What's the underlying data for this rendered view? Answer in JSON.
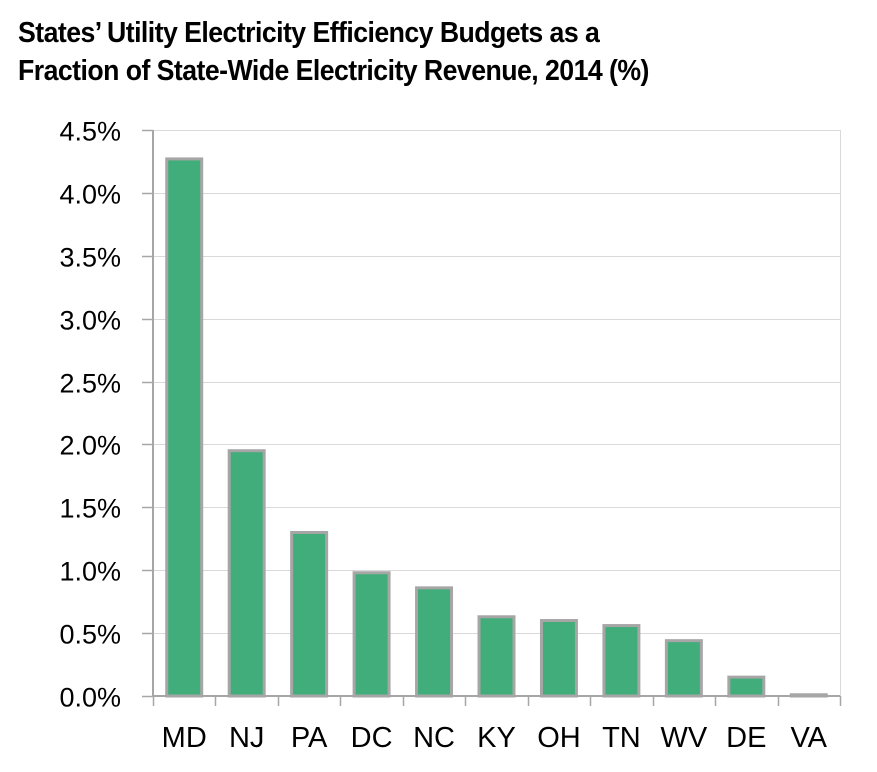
{
  "chart_data": {
    "type": "bar",
    "title": "States’ Utility Electricity Efficiency Budgets as a Fraction of State-Wide Electricity Revenue, 2014 (%)",
    "title_lines": [
      "States’ Utility Electricity Efficiency Budgets as a",
      "Fraction of State-Wide Electricity Revenue, 2014 (%)"
    ],
    "xlabel": "",
    "ylabel": "",
    "categories": [
      "MD",
      "NJ",
      "PA",
      "DC",
      "NC",
      "KY",
      "OH",
      "TN",
      "WV",
      "DE",
      "VA"
    ],
    "values": [
      4.27,
      1.95,
      1.3,
      0.98,
      0.86,
      0.63,
      0.6,
      0.56,
      0.44,
      0.15,
      0.01
    ],
    "ylim": [
      0,
      4.5
    ],
    "yticks": [
      0,
      0.5,
      1.0,
      1.5,
      2.0,
      2.5,
      3.0,
      3.5,
      4.0,
      4.5
    ],
    "ytick_labels": [
      "0.0%",
      "0.5%",
      "1.0%",
      "1.5%",
      "2.0%",
      "2.5%",
      "3.0%",
      "3.5%",
      "4.0%",
      "4.5%"
    ],
    "grid": true,
    "legend": "none",
    "colors": {
      "bar_fill": "#41ad7a",
      "bar_stroke": "#a6a6a6",
      "grid": "#d9d9d9",
      "axis": "#a6a6a6"
    }
  }
}
